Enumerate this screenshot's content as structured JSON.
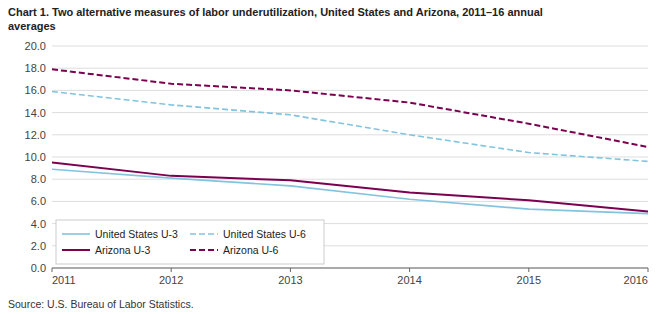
{
  "chart_data": {
    "type": "line",
    "title": "Chart 1. Two alternative measures of labor underutilization, United States and Arizona, 2011–16  annual\naverages",
    "annotations": [
      "Source: U.S. Bureau of Labor Statistics."
    ],
    "x": [
      2011,
      2012,
      2013,
      2014,
      2015,
      2016
    ],
    "xlim": [
      2011,
      2016
    ],
    "xticks": [
      2011,
      2012,
      2013,
      2014,
      2015,
      2016
    ],
    "ylim": [
      0,
      20.0
    ],
    "yticks": [
      {
        "value": 0.0,
        "label": "0.0"
      },
      {
        "value": 2.0,
        "label": "2.0"
      },
      {
        "value": 4.0,
        "label": "4.0"
      },
      {
        "value": 6.0,
        "label": "6.0"
      },
      {
        "value": 8.0,
        "label": "8.0"
      },
      {
        "value": 10.0,
        "label": "10.0"
      },
      {
        "value": 12.0,
        "label": "12.0"
      },
      {
        "value": 14.0,
        "label": "14.0"
      },
      {
        "value": 16.0,
        "label": "16.0"
      },
      {
        "value": 18.0,
        "label": "18.0"
      },
      {
        "value": 20.0,
        "label": "20.0"
      }
    ],
    "grid": true,
    "legend": "lower left",
    "series": [
      {
        "name": "United States  U-3",
        "color": "#82c4e0",
        "line_style": "solid",
        "values": [
          8.9,
          8.1,
          7.4,
          6.2,
          5.3,
          4.9
        ]
      },
      {
        "name": "United States  U-6",
        "color": "#82c4e0",
        "line_style": "dashed",
        "values": [
          15.9,
          14.7,
          13.8,
          12.0,
          10.4,
          9.6
        ]
      },
      {
        "name": "Arizona  U-3",
        "color": "#7b0050",
        "line_style": "solid",
        "values": [
          9.5,
          8.3,
          7.9,
          6.8,
          6.1,
          5.1
        ]
      },
      {
        "name": "Arizona  U-6",
        "color": "#7b0050",
        "line_style": "dashed",
        "values": [
          17.9,
          16.6,
          16.0,
          14.9,
          13.0,
          10.9
        ]
      }
    ]
  }
}
